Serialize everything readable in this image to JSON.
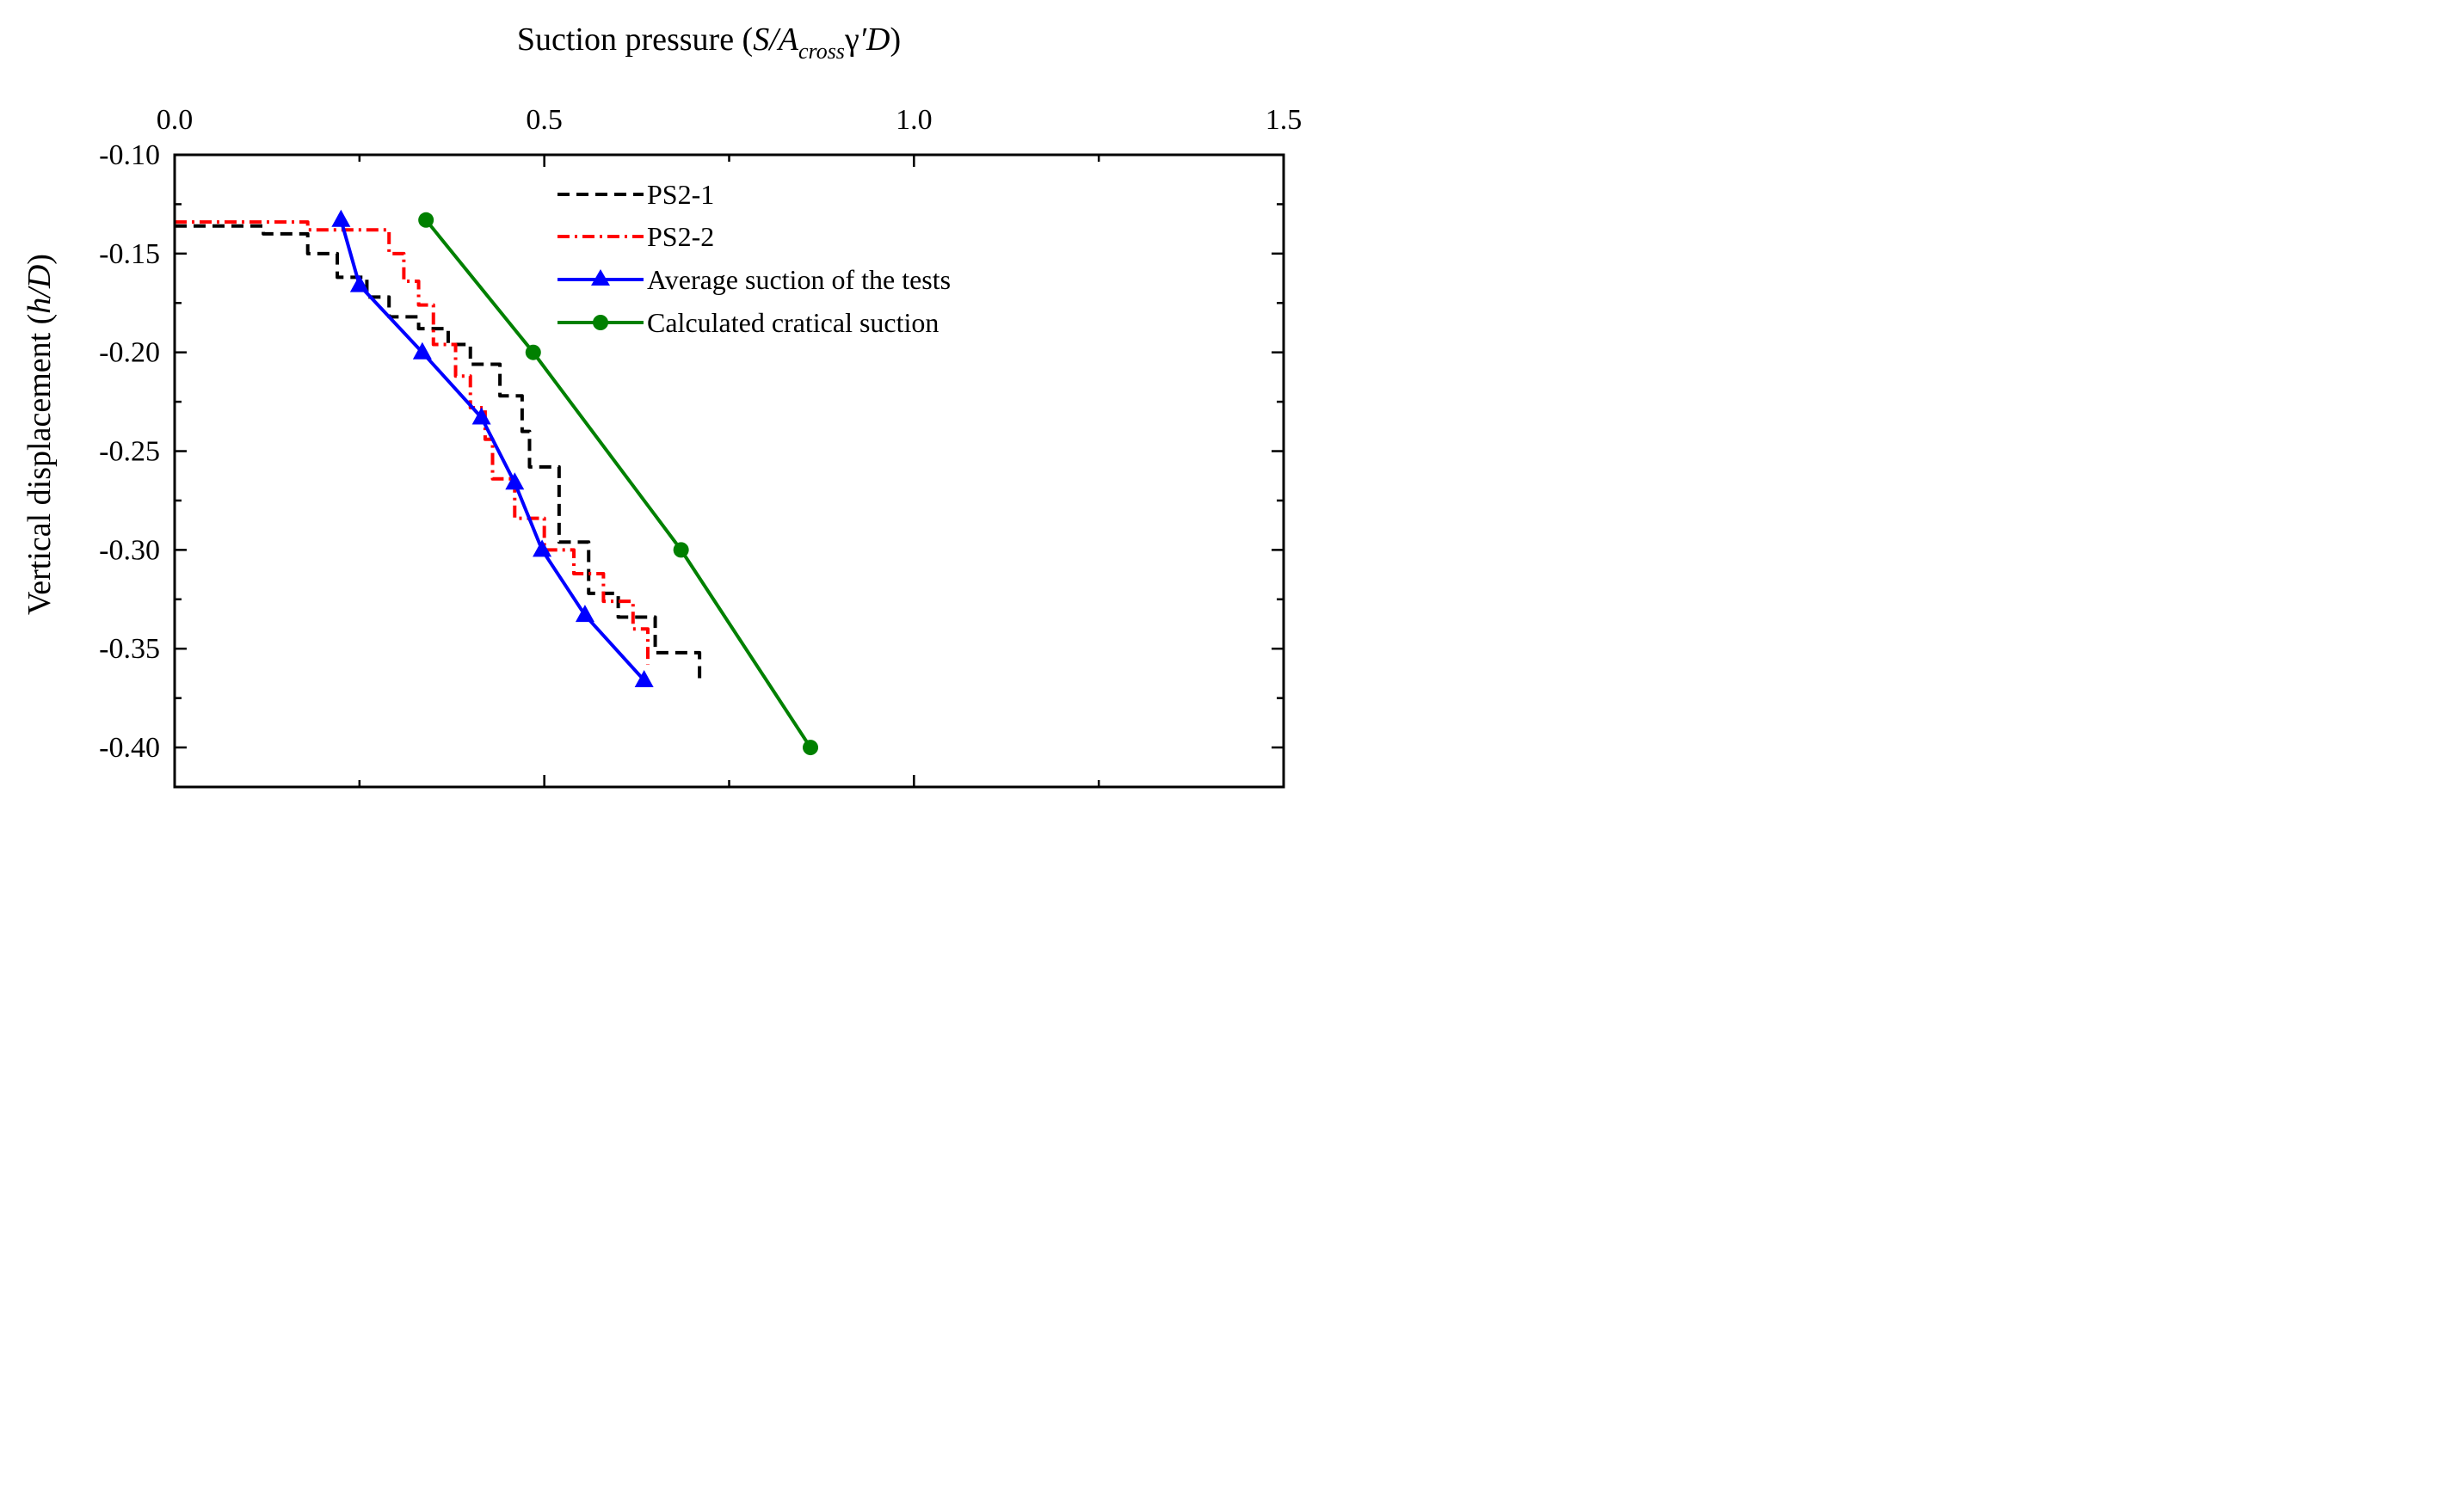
{
  "chart_data": {
    "type": "line",
    "xlabel": {
      "prefix": "Suction pressure (",
      "s": "S/A",
      "sub": "cross",
      "gamma": "γ",
      "prime_d": "′D",
      "suffix": ")"
    },
    "ylabel": {
      "prefix": "Vertical displacement (",
      "var": "h/D",
      "suffix": ")"
    },
    "x_axis_position": "top",
    "xlim": [
      0.0,
      1.5
    ],
    "ylim": [
      -0.1,
      -0.42
    ],
    "xticks": [
      "0.0",
      "0.5",
      "1.0",
      "1.5"
    ],
    "xtick_values": [
      0.0,
      0.5,
      1.0,
      1.5
    ],
    "yticks": [
      "-0.10",
      "-0.15",
      "-0.20",
      "-0.25",
      "-0.30",
      "-0.35",
      "-0.40"
    ],
    "ytick_values": [
      -0.1,
      -0.15,
      -0.2,
      -0.25,
      -0.3,
      -0.35,
      -0.4
    ],
    "grid": false,
    "legend_position": "top-center",
    "series": [
      {
        "name": "PS2-1",
        "style": "dash",
        "color": "#000000",
        "x": [
          0.0,
          0.12,
          0.18,
          0.22,
          0.26,
          0.29,
          0.33,
          0.37,
          0.4,
          0.44,
          0.47,
          0.48,
          0.52,
          0.56,
          0.6,
          0.65,
          0.71
        ],
        "y": [
          -0.136,
          -0.14,
          -0.15,
          -0.162,
          -0.172,
          -0.182,
          -0.188,
          -0.196,
          -0.206,
          -0.222,
          -0.24,
          -0.258,
          -0.296,
          -0.322,
          -0.334,
          -0.352,
          -0.366
        ]
      },
      {
        "name": "PS2-2",
        "style": "dashdot",
        "color": "#ff0000",
        "x": [
          0.0,
          0.18,
          0.29,
          0.31,
          0.33,
          0.35,
          0.38,
          0.4,
          0.42,
          0.43,
          0.46,
          0.5,
          0.54,
          0.58,
          0.62,
          0.64
        ],
        "y": [
          -0.134,
          -0.138,
          -0.15,
          -0.164,
          -0.176,
          -0.196,
          -0.212,
          -0.228,
          -0.244,
          -0.264,
          -0.284,
          -0.3,
          -0.312,
          -0.326,
          -0.34,
          -0.358
        ]
      },
      {
        "name": "Average suction of the tests",
        "style": "solid",
        "marker": "triangle",
        "color": "#0000ff",
        "x": [
          0.225,
          0.25,
          0.335,
          0.415,
          0.46,
          0.497,
          0.555,
          0.635
        ],
        "y": [
          -0.133,
          -0.166,
          -0.2,
          -0.233,
          -0.266,
          -0.3,
          -0.333,
          -0.366
        ]
      },
      {
        "name": "Calculated cratical suction",
        "style": "solid",
        "marker": "circle",
        "color": "#008000",
        "x": [
          0.34,
          0.485,
          0.685,
          0.86
        ],
        "y": [
          -0.133,
          -0.2,
          -0.3,
          -0.4
        ]
      }
    ]
  }
}
